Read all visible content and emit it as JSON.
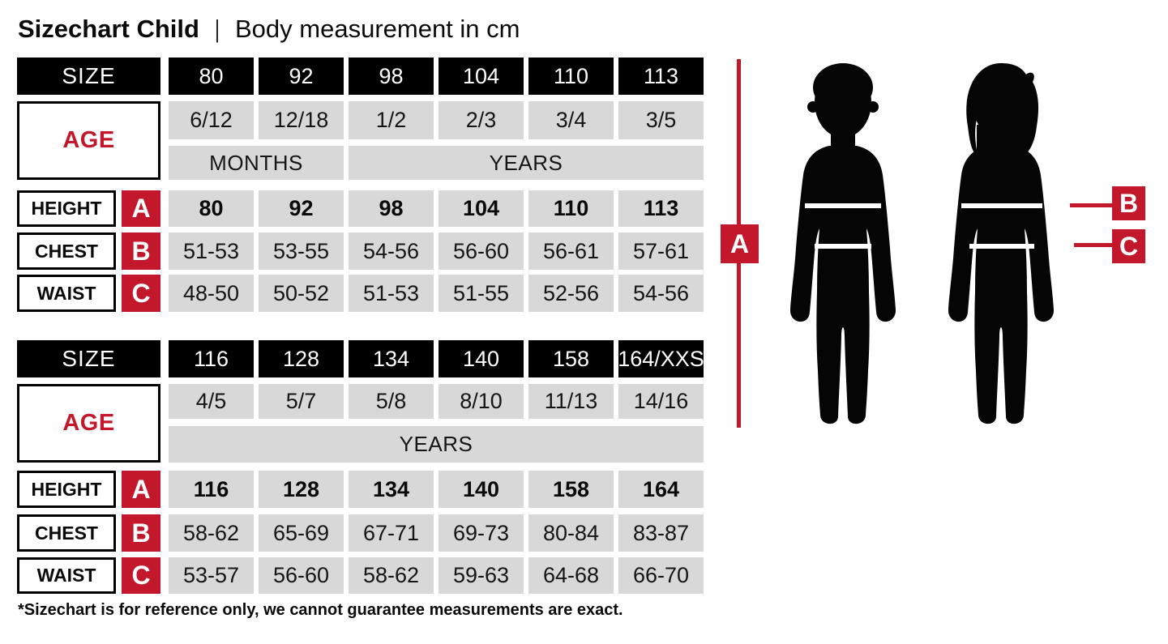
{
  "title": {
    "main": "Sizechart Child",
    "separator": "|",
    "subtitle": "Body measurement in cm"
  },
  "labels": {
    "size": "SIZE",
    "age": "AGE",
    "height": "HEIGHT",
    "chest": "CHEST",
    "waist": "WAIST",
    "months": "MONTHS",
    "years": "YEARS",
    "marker_a": "A",
    "marker_b": "B",
    "marker_c": "C"
  },
  "colors": {
    "accent_red": "#C3182B",
    "cell_gray": "#D8D8D8",
    "header_black": "#000000"
  },
  "tables": [
    {
      "size_header": [
        "80",
        "92",
        "98",
        "104",
        "110",
        "113"
      ],
      "ages": [
        "6/12",
        "12/18",
        "1/2",
        "2/3",
        "3/4",
        "3/5"
      ],
      "height": [
        "80",
        "92",
        "98",
        "104",
        "110",
        "113"
      ],
      "chest": [
        "51-53",
        "53-55",
        "54-56",
        "56-60",
        "56-61",
        "57-61"
      ],
      "waist": [
        "48-50",
        "50-52",
        "51-53",
        "51-55",
        "52-56",
        "54-56"
      ]
    },
    {
      "size_header": [
        "116",
        "128",
        "134",
        "140",
        "158",
        "164/XXS"
      ],
      "ages": [
        "4/5",
        "5/7",
        "5/8",
        "8/10",
        "11/13",
        "14/16"
      ],
      "height": [
        "116",
        "128",
        "134",
        "140",
        "158",
        "164"
      ],
      "chest": [
        "58-62",
        "65-69",
        "67-71",
        "69-73",
        "80-84",
        "83-87"
      ],
      "waist": [
        "53-57",
        "56-60",
        "58-62",
        "59-63",
        "64-68",
        "66-70"
      ]
    }
  ],
  "footnote": "*Sizechart is for reference only, we cannot guarantee measurements are exact.",
  "chart_data": [
    {
      "type": "table",
      "title": "Sizechart Child — Body measurement in cm (sizes 80-113)",
      "columns": [
        "80",
        "92",
        "98",
        "104",
        "110",
        "113"
      ],
      "rows": [
        {
          "label": "AGE",
          "values": [
            "6/12 MONTHS",
            "12/18 MONTHS",
            "1/2 YEARS",
            "2/3 YEARS",
            "3/4 YEARS",
            "3/5 YEARS"
          ]
        },
        {
          "label": "HEIGHT (A)",
          "values": [
            "80",
            "92",
            "98",
            "104",
            "110",
            "113"
          ]
        },
        {
          "label": "CHEST (B)",
          "values": [
            "51-53",
            "53-55",
            "54-56",
            "56-60",
            "56-61",
            "57-61"
          ]
        },
        {
          "label": "WAIST (C)",
          "values": [
            "48-50",
            "50-52",
            "51-53",
            "51-55",
            "52-56",
            "54-56"
          ]
        }
      ]
    },
    {
      "type": "table",
      "title": "Sizechart Child — Body measurement in cm (sizes 116-164/XXS)",
      "columns": [
        "116",
        "128",
        "134",
        "140",
        "158",
        "164/XXS"
      ],
      "rows": [
        {
          "label": "AGE",
          "values": [
            "4/5 YEARS",
            "5/7 YEARS",
            "5/8 YEARS",
            "8/10 YEARS",
            "11/13 YEARS",
            "14/16 YEARS"
          ]
        },
        {
          "label": "HEIGHT (A)",
          "values": [
            "116",
            "128",
            "134",
            "140",
            "158",
            "164"
          ]
        },
        {
          "label": "CHEST (B)",
          "values": [
            "58-62",
            "65-69",
            "67-71",
            "69-73",
            "80-84",
            "83-87"
          ]
        },
        {
          "label": "WAIST (C)",
          "values": [
            "53-57",
            "56-60",
            "58-62",
            "59-63",
            "64-68",
            "66-70"
          ]
        }
      ]
    }
  ]
}
